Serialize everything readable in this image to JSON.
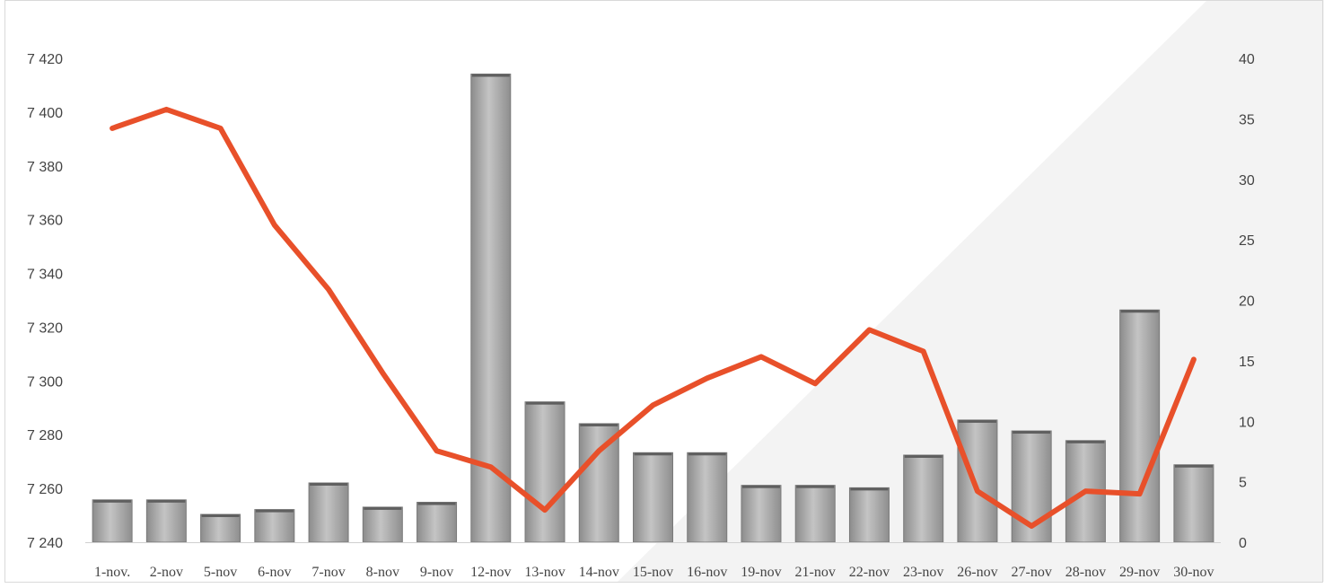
{
  "chart_data": {
    "type": "bar+line",
    "title": "",
    "categories": [
      "1-nov.",
      "2-nov",
      "5-nov",
      "6-nov",
      "7-nov",
      "8-nov",
      "9-nov",
      "12-nov",
      "13-nov",
      "14-nov",
      "15-nov",
      "16-nov",
      "19-nov",
      "21-nov",
      "22-nov",
      "23-nov",
      "26-nov",
      "27-nov",
      "28-nov",
      "29-nov",
      "30-nov"
    ],
    "series": [
      {
        "type": "line",
        "axis": "left",
        "color": "#e8502a",
        "values": [
          7394,
          7401,
          7394,
          7358,
          7334,
          7303,
          7274,
          7268,
          7252,
          7274,
          7291,
          7301,
          7309,
          7299,
          7319,
          7311,
          7259,
          7246,
          7259,
          7258,
          7308
        ]
      },
      {
        "type": "bar",
        "axis": "right",
        "color": "#a9a9a9",
        "values": [
          3.5,
          3.5,
          2.3,
          2.7,
          4.9,
          2.9,
          3.3,
          38.7,
          11.6,
          9.8,
          7.4,
          7.4,
          4.7,
          4.7,
          4.5,
          7.2,
          10.1,
          9.2,
          8.4,
          19.2,
          6.4
        ]
      }
    ],
    "y_left": {
      "min": 7240,
      "max": 7420,
      "ticks": [
        "7 240",
        "7 260",
        "7 280",
        "7 300",
        "7 320",
        "7 340",
        "7 360",
        "7 380",
        "7 400",
        "7 420"
      ]
    },
    "y_right": {
      "min": 0,
      "max": 40,
      "ticks": [
        "0",
        "5",
        "10",
        "15",
        "20",
        "25",
        "30",
        "35",
        "40"
      ]
    },
    "grid": false,
    "legend": "none"
  }
}
